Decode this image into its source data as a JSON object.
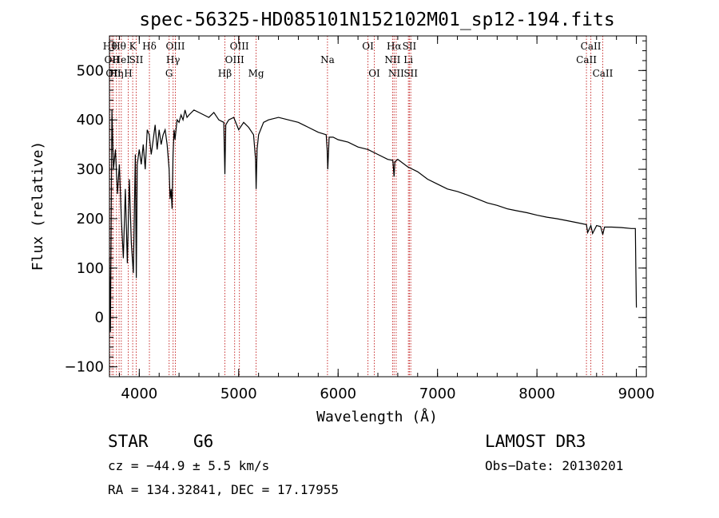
{
  "chart_data": {
    "type": "line",
    "title": "spec-56325-HD085101N152102M01_sp12-194.fits",
    "xlabel": "Wavelength (Å)",
    "ylabel": "Flux (relative)",
    "xlim": [
      3700,
      9100
    ],
    "ylim": [
      -120,
      570
    ],
    "x_ticks": [
      4000,
      5000,
      6000,
      7000,
      8000,
      9000
    ],
    "y_ticks": [
      -100,
      0,
      100,
      200,
      300,
      400,
      500
    ],
    "x_minor_step": 200,
    "y_minor_step": 20,
    "grid": false,
    "series": [
      {
        "name": "spectrum",
        "x": [
          3700,
          3710,
          3725,
          3740,
          3760,
          3780,
          3800,
          3820,
          3840,
          3860,
          3880,
          3900,
          3920,
          3940,
          3960,
          3970,
          3980,
          4000,
          4020,
          4040,
          4060,
          4080,
          4100,
          4120,
          4140,
          4160,
          4180,
          4200,
          4220,
          4240,
          4260,
          4280,
          4300,
          4310,
          4320,
          4330,
          4340,
          4350,
          4360,
          4380,
          4400,
          4420,
          4440,
          4460,
          4480,
          4500,
          4550,
          4600,
          4650,
          4700,
          4750,
          4800,
          4850,
          4861,
          4870,
          4900,
          4950,
          5000,
          5050,
          5100,
          5150,
          5170,
          5175,
          5185,
          5200,
          5250,
          5300,
          5400,
          5500,
          5600,
          5700,
          5800,
          5880,
          5890,
          5896,
          5910,
          5950,
          6000,
          6100,
          6200,
          6300,
          6400,
          6500,
          6550,
          6563,
          6570,
          6600,
          6700,
          6800,
          6900,
          7000,
          7100,
          7200,
          7300,
          7400,
          7500,
          7600,
          7700,
          7800,
          7900,
          8000,
          8100,
          8200,
          8300,
          8400,
          8498,
          8510,
          8542,
          8560,
          8600,
          8640,
          8662,
          8680,
          8750,
          8850,
          8950,
          8990,
          8995,
          9000
        ],
        "y": [
          120,
          -30,
          420,
          300,
          340,
          250,
          310,
          200,
          120,
          260,
          110,
          280,
          150,
          90,
          330,
          80,
          310,
          340,
          310,
          350,
          300,
          380,
          370,
          330,
          360,
          390,
          340,
          380,
          350,
          370,
          380,
          350,
          300,
          240,
          260,
          220,
          330,
          380,
          360,
          400,
          395,
          410,
          400,
          420,
          405,
          410,
          420,
          415,
          410,
          405,
          415,
          400,
          395,
          290,
          390,
          400,
          405,
          380,
          395,
          385,
          370,
          320,
          260,
          340,
          370,
          395,
          400,
          405,
          400,
          395,
          385,
          375,
          370,
          340,
          300,
          365,
          365,
          360,
          355,
          345,
          340,
          330,
          320,
          318,
          285,
          315,
          320,
          305,
          295,
          280,
          270,
          260,
          255,
          248,
          240,
          232,
          227,
          220,
          216,
          212,
          207,
          203,
          200,
          196,
          192,
          188,
          172,
          186,
          170,
          186,
          184,
          168,
          183,
          183,
          182,
          180,
          180,
          100,
          20
        ]
      }
    ],
    "spectral_lines": [
      {
        "x": 3705,
        "row": 1,
        "label": "Hθ"
      },
      {
        "x": 3725,
        "row": 2,
        "label": "OII"
      },
      {
        "x": 3740,
        "row": 3,
        "label": "OII"
      },
      {
        "x": 3770,
        "row": 3,
        "label": "Hη"
      },
      {
        "x": 3797,
        "row": 1,
        "label": "Hθ"
      },
      {
        "x": 3819,
        "row": 2,
        "label": "HeI"
      },
      {
        "x": 3889,
        "row": 3,
        "label": "H"
      },
      {
        "x": 3934,
        "row": 1,
        "label": "K"
      },
      {
        "x": 3969,
        "row": 2,
        "label": "SII"
      },
      {
        "x": 4102,
        "row": 1,
        "label": "Hδ"
      },
      {
        "x": 4300,
        "row": 3,
        "label": "G"
      },
      {
        "x": 4340,
        "row": 2,
        "label": "Hγ"
      },
      {
        "x": 4363,
        "row": 1,
        "label": "OIII"
      },
      {
        "x": 4861,
        "row": 3,
        "label": "Hβ"
      },
      {
        "x": 4959,
        "row": 2,
        "label": "OIII"
      },
      {
        "x": 5007,
        "row": 1,
        "label": "OIII"
      },
      {
        "x": 5175,
        "row": 3,
        "label": "Mg"
      },
      {
        "x": 5893,
        "row": 2,
        "label": "Na"
      },
      {
        "x": 6300,
        "row": 1,
        "label": "OI"
      },
      {
        "x": 6364,
        "row": 3,
        "label": "OI"
      },
      {
        "x": 6548,
        "row": 2,
        "label": "NII"
      },
      {
        "x": 6563,
        "row": 1,
        "label": "Hα"
      },
      {
        "x": 6584,
        "row": 3,
        "label": "NII"
      },
      {
        "x": 6707,
        "row": 2,
        "label": "Li"
      },
      {
        "x": 6717,
        "row": 1,
        "label": "SII"
      },
      {
        "x": 6731,
        "row": 3,
        "label": "SII"
      },
      {
        "x": 8498,
        "row": 2,
        "label": "CaII"
      },
      {
        "x": 8542,
        "row": 1,
        "label": "CaII"
      },
      {
        "x": 8662,
        "row": 3,
        "label": "CaII"
      }
    ]
  },
  "info": {
    "object_type": "STAR",
    "subclass": "G6",
    "survey": "LAMOST DR3",
    "redshift": "cz = −44.9 ± 5.5 km/s",
    "obs_date": "Obs−Date: 20130201",
    "coords": "RA = 134.32841, DEC =  17.17955"
  }
}
